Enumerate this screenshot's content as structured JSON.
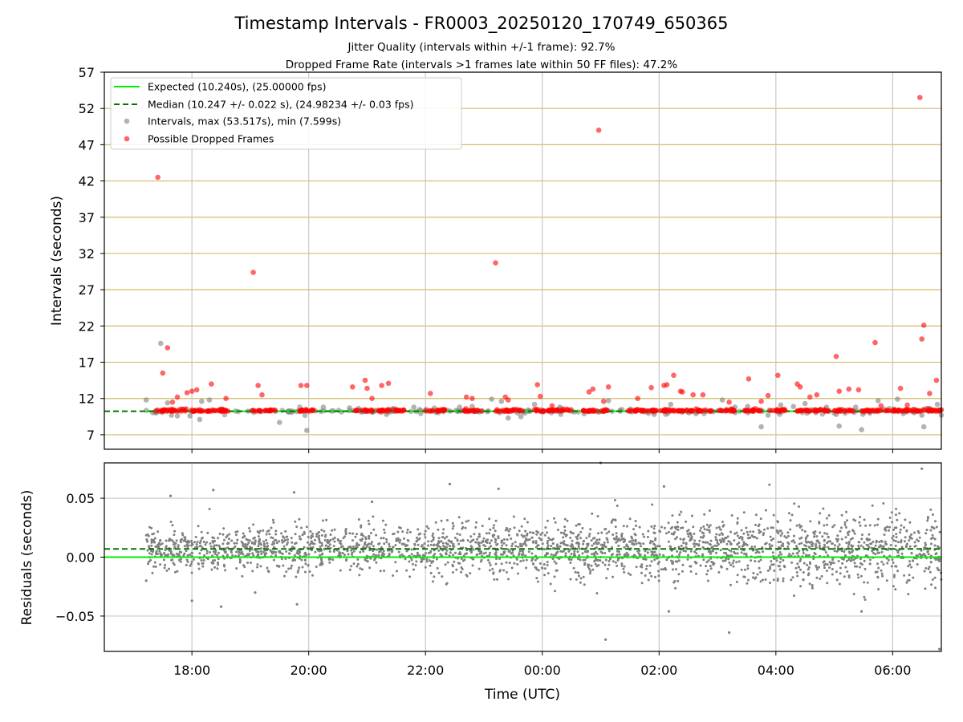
{
  "header": {
    "title": "Timestamp Intervals - FR0003_20250120_170749_650365",
    "subtitle1": "Jitter Quality (intervals within +/-1 frame): 92.7%",
    "subtitle2": "Dropped Frame Rate (intervals >1 frames late within 50 FF files): 47.2%"
  },
  "colors": {
    "expected": "#00ee00",
    "median": "#007700",
    "intervals": "#808080",
    "dropped": "#ff0000",
    "hgrid": "#d4b86a",
    "vgrid": "#c8c8c8"
  },
  "chart_data": [
    {
      "type": "scatter",
      "ylabel": "Intervals (seconds)",
      "xlim": [
        "16:30",
        "06:50"
      ],
      "ylim": [
        5,
        57
      ],
      "yticks": [
        "7",
        "12",
        "17",
        "22",
        "27",
        "32",
        "37",
        "42",
        "47",
        "52",
        "57"
      ],
      "xgrid": [
        "18:00",
        "20:00",
        "22:00",
        "00:00",
        "02:00",
        "04:00",
        "06:00"
      ],
      "legend_position": "upper-left",
      "legend": [
        "Expected (10.240s), (25.00000 fps)",
        "Median (10.247 +/- 0.022 s), (24.98234 +/- 0.03 fps)",
        "Intervals, max (53.517s), min (7.599s)",
        "Possible Dropped Frames"
      ],
      "expected": 10.24,
      "median": 10.247,
      "series": [
        {
          "name": "Intervals, max (53.517s), min (7.599s)",
          "x": [
            "17:13",
            "17:28",
            "17:35",
            "17:39",
            "17:45",
            "17:58",
            "18:08",
            "18:10",
            "18:18",
            "19:30",
            "19:58",
            "20:15",
            "20:42",
            "21:20",
            "21:48",
            "22:35",
            "22:48",
            "23:08",
            "23:18",
            "23:25",
            "23:38",
            "23:52",
            "00:18",
            "00:43",
            "01:08",
            "01:55",
            "02:12",
            "02:38",
            "03:05",
            "03:18",
            "03:31",
            "03:45",
            "03:52",
            "04:05",
            "04:18",
            "04:30",
            "04:52",
            "05:02",
            "05:05",
            "05:22",
            "05:28",
            "05:45",
            "06:05",
            "06:30",
            "06:32",
            "06:38",
            "06:46",
            "06:50"
          ],
          "y": [
            11.8,
            19.6,
            11.4,
            9.7,
            9.6,
            9.6,
            9.1,
            11.6,
            11.8,
            8.7,
            7.6,
            10.8,
            10.7,
            9.8,
            10.8,
            10.8,
            10.9,
            11.9,
            11.6,
            9.3,
            9.5,
            11.2,
            10.8,
            9.9,
            11.7,
            9.8,
            11.2,
            9.9,
            11.8,
            10.8,
            10.9,
            8.1,
            9.7,
            11.1,
            10.9,
            11.3,
            10.8,
            9.8,
            8.2,
            10.8,
            7.7,
            11.7,
            11.9,
            9.7,
            8.1,
            10.6,
            11.2,
            9.7
          ],
          "count": 260,
          "color": "#808080"
        },
        {
          "name": "Possible Dropped Frames",
          "x": [
            "17:25",
            "17:30",
            "17:35",
            "17:40",
            "17:45",
            "17:55",
            "18:00",
            "18:05",
            "18:20",
            "18:35",
            "19:03",
            "19:08",
            "19:12",
            "19:52",
            "19:58",
            "20:45",
            "20:58",
            "21:00",
            "21:05",
            "21:15",
            "21:22",
            "22:05",
            "22:42",
            "22:48",
            "23:12",
            "23:22",
            "23:25",
            "23:55",
            "23:58",
            "00:10",
            "00:48",
            "00:52",
            "00:58",
            "01:03",
            "01:08",
            "01:38",
            "01:52",
            "02:05",
            "02:08",
            "02:15",
            "02:22",
            "02:24",
            "02:35",
            "02:45",
            "03:12",
            "03:32",
            "03:45",
            "03:52",
            "04:02",
            "04:22",
            "04:25",
            "04:35",
            "04:42",
            "05:02",
            "05:05",
            "05:15",
            "05:25",
            "05:42",
            "05:48",
            "06:08",
            "06:15",
            "06:28",
            "06:30",
            "06:32",
            "06:38",
            "06:45"
          ],
          "y": [
            42.5,
            15.5,
            19.0,
            11.5,
            12.2,
            12.8,
            13.0,
            13.2,
            14.0,
            12.0,
            29.4,
            13.8,
            12.5,
            13.8,
            13.8,
            13.6,
            14.5,
            13.4,
            12.0,
            13.8,
            14.1,
            12.7,
            12.2,
            12.0,
            30.7,
            12.2,
            11.8,
            13.9,
            12.3,
            11.0,
            12.9,
            13.3,
            49.0,
            11.6,
            13.6,
            12.0,
            13.5,
            13.8,
            13.9,
            15.2,
            13.0,
            12.9,
            12.5,
            12.5,
            11.5,
            14.7,
            11.6,
            12.4,
            15.2,
            14.0,
            13.6,
            12.2,
            12.5,
            17.8,
            13.0,
            13.3,
            13.2,
            19.7,
            11.0,
            13.4,
            11.1,
            53.5,
            20.2,
            22.1,
            12.7,
            14.5
          ],
          "baseline": 10.24,
          "color": "#ff0000"
        }
      ]
    },
    {
      "type": "scatter",
      "xlabel": "Time (UTC)",
      "ylabel": "Residuals (seconds)",
      "xlim": [
        "16:30",
        "06:50"
      ],
      "ylim": [
        -0.08,
        0.08
      ],
      "yticks": [
        "0.05",
        "0.00",
        "−0.05"
      ],
      "ytick_values": [
        0.05,
        0.0,
        -0.05
      ],
      "xticks": [
        "18:00",
        "20:00",
        "22:00",
        "00:00",
        "02:00",
        "04:00",
        "06:00"
      ],
      "expected": 0.0,
      "median": 0.007,
      "series": [
        {
          "name": "Residuals",
          "x_start": "17:13",
          "x_end": "06:50",
          "center": 0.007,
          "count": 2600,
          "spread_start": 0.008,
          "spread_end": 0.016,
          "outliers": [
            {
              "x": "17:13",
              "y": -0.02
            },
            {
              "x": "17:38",
              "y": 0.052
            },
            {
              "x": "18:00",
              "y": -0.037
            },
            {
              "x": "18:22",
              "y": 0.057
            },
            {
              "x": "18:30",
              "y": -0.042
            },
            {
              "x": "19:05",
              "y": -0.03
            },
            {
              "x": "19:45",
              "y": 0.055
            },
            {
              "x": "19:48",
              "y": -0.04
            },
            {
              "x": "21:05",
              "y": 0.047
            },
            {
              "x": "22:25",
              "y": 0.062
            },
            {
              "x": "23:15",
              "y": 0.058
            },
            {
              "x": "01:00",
              "y": 0.08
            },
            {
              "x": "01:05",
              "y": -0.07
            },
            {
              "x": "02:05",
              "y": 0.06
            },
            {
              "x": "02:10",
              "y": -0.046
            },
            {
              "x": "03:12",
              "y": -0.064
            },
            {
              "x": "05:28",
              "y": -0.046
            },
            {
              "x": "06:30",
              "y": 0.075
            },
            {
              "x": "06:48",
              "y": -0.078
            }
          ],
          "color": "#808080"
        }
      ]
    }
  ]
}
